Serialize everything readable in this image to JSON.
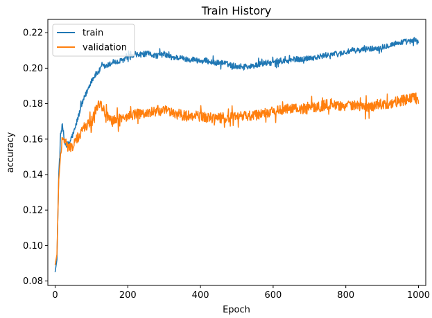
{
  "chart_data": {
    "type": "line",
    "title": "Train History",
    "xlabel": "Epoch",
    "ylabel": "accuracy",
    "xlim": [
      -20,
      1020
    ],
    "ylim": [
      0.0775,
      0.2275
    ],
    "x_ticks": [
      0,
      200,
      400,
      600,
      800,
      1000
    ],
    "x_tick_labels": [
      "0",
      "200",
      "400",
      "600",
      "800",
      "1000"
    ],
    "y_ticks": [
      0.08,
      0.1,
      0.12,
      0.14,
      0.16,
      0.18,
      0.2,
      0.22
    ],
    "y_tick_labels": [
      "0.08",
      "0.10",
      "0.12",
      "0.14",
      "0.16",
      "0.18",
      "0.20",
      "0.22"
    ],
    "grid": false,
    "legend_position": "top-left",
    "series": [
      {
        "name": "train",
        "color": "#1f77b4",
        "x": [
          0,
          5,
          10,
          15,
          20,
          25,
          30,
          35,
          40,
          45,
          50,
          55,
          60,
          70,
          80,
          90,
          100,
          110,
          120,
          130,
          140,
          150,
          160,
          170,
          180,
          190,
          200,
          220,
          240,
          260,
          280,
          300,
          320,
          340,
          360,
          380,
          400,
          420,
          440,
          460,
          480,
          500,
          520,
          540,
          560,
          580,
          600,
          620,
          640,
          660,
          680,
          700,
          720,
          740,
          760,
          780,
          800,
          820,
          840,
          860,
          880,
          900,
          920,
          940,
          960,
          980,
          990,
          1000
        ],
        "y": [
          0.085,
          0.092,
          0.14,
          0.162,
          0.168,
          0.16,
          0.157,
          0.157,
          0.158,
          0.161,
          0.163,
          0.166,
          0.17,
          0.177,
          0.183,
          0.188,
          0.193,
          0.196,
          0.198,
          0.201,
          0.201,
          0.202,
          0.204,
          0.203,
          0.204,
          0.205,
          0.206,
          0.207,
          0.208,
          0.208,
          0.207,
          0.208,
          0.206,
          0.206,
          0.205,
          0.205,
          0.204,
          0.204,
          0.203,
          0.203,
          0.202,
          0.201,
          0.201,
          0.201,
          0.202,
          0.203,
          0.203,
          0.204,
          0.204,
          0.205,
          0.205,
          0.206,
          0.206,
          0.207,
          0.208,
          0.208,
          0.209,
          0.21,
          0.21,
          0.211,
          0.211,
          0.212,
          0.213,
          0.214,
          0.215,
          0.215,
          0.216,
          0.214
        ]
      },
      {
        "name": "validation",
        "color": "#ff7f0e",
        "x": [
          0,
          5,
          10,
          15,
          20,
          25,
          30,
          35,
          40,
          45,
          50,
          55,
          60,
          70,
          80,
          90,
          100,
          110,
          120,
          125,
          130,
          140,
          150,
          160,
          170,
          180,
          190,
          200,
          220,
          240,
          260,
          280,
          300,
          320,
          340,
          360,
          380,
          400,
          420,
          440,
          460,
          480,
          500,
          520,
          540,
          560,
          580,
          600,
          620,
          640,
          660,
          680,
          700,
          720,
          740,
          760,
          780,
          800,
          820,
          840,
          860,
          880,
          900,
          920,
          940,
          960,
          980,
          990,
          1000
        ],
        "y": [
          0.089,
          0.095,
          0.137,
          0.15,
          0.162,
          0.16,
          0.157,
          0.156,
          0.155,
          0.156,
          0.156,
          0.158,
          0.16,
          0.163,
          0.167,
          0.168,
          0.17,
          0.176,
          0.18,
          0.181,
          0.178,
          0.174,
          0.171,
          0.17,
          0.171,
          0.172,
          0.172,
          0.173,
          0.174,
          0.174,
          0.175,
          0.176,
          0.176,
          0.175,
          0.174,
          0.173,
          0.173,
          0.173,
          0.172,
          0.172,
          0.172,
          0.172,
          0.172,
          0.173,
          0.173,
          0.174,
          0.175,
          0.176,
          0.176,
          0.177,
          0.177,
          0.177,
          0.178,
          0.178,
          0.179,
          0.18,
          0.179,
          0.179,
          0.179,
          0.178,
          0.178,
          0.179,
          0.18,
          0.18,
          0.181,
          0.182,
          0.183,
          0.184,
          0.181
        ]
      }
    ]
  }
}
